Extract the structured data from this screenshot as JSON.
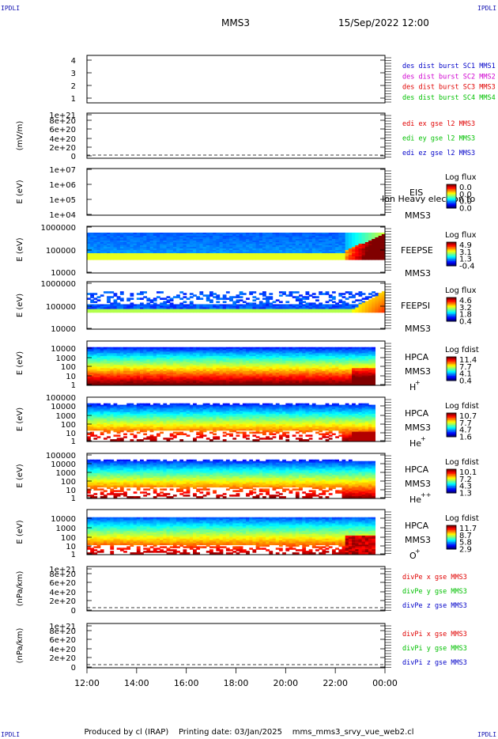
{
  "header": {
    "corner_tl": "IPDLI",
    "corner_tr": "IPDLI",
    "corner_bl": "IPDLI",
    "corner_br": "IPDLI",
    "mission": "MMS3",
    "datetime": "15/Sep/2022 12:00"
  },
  "footer": {
    "produced_by": "Produced by cl (IRAP)",
    "printing_date": "Printing date: 03/Jan/2025",
    "script": "mms_mms3_srvy_vue_web2.cl"
  },
  "colors": {
    "blue": "#0000c8",
    "magenta": "#d000d0",
    "red": "#e00000",
    "green": "#00c000"
  },
  "chart_data": {
    "type": "heatmap",
    "x_ticks": [
      "12:00",
      "14:00",
      "16:00",
      "18:00",
      "20:00",
      "22:00",
      "00:00"
    ],
    "xlim": [
      "12:00",
      "00:00"
    ],
    "panels": [
      {
        "id": "dist-burst",
        "ylabel": "",
        "ytick_labels": [
          "1",
          "2",
          "3",
          "4"
        ],
        "ylim": [
          0.6,
          4.4
        ],
        "legend": [
          {
            "text": "des dist burst SC1 MMS1",
            "color": "#0000c8"
          },
          {
            "text": "des dist burst SC2 MMS2",
            "color": "#d000d0"
          },
          {
            "text": "des dist burst SC3 MMS3",
            "color": "#e00000"
          },
          {
            "text": "des dist burst SC4 MMS4",
            "color": "#00c000"
          }
        ]
      },
      {
        "id": "edi-e",
        "ylabel": "(mV/m)",
        "ytick_labels": [
          "0",
          "2e+20",
          "4e+20",
          "6e+20",
          "8e+20",
          "1e+21"
        ],
        "zero_line": true,
        "legend": [
          {
            "text": "edi ex gse l2 MMS3",
            "color": "#e00000"
          },
          {
            "text": "edi ey gse l2 MMS3",
            "color": "#00c000"
          },
          {
            "text": "edi ez gse l2 MMS3",
            "color": "#0000c8"
          }
        ]
      },
      {
        "id": "eis",
        "ylabel": "E (eV)",
        "ytick_labels": [
          "1e+04",
          "1e+05",
          "1e+06",
          "1e+07"
        ],
        "log_scale": true,
        "ylim": [
          10000,
          10000000
        ],
        "instrument": "EIS",
        "sub_label": "MMS3",
        "overlay_text": "Ion Heavy electron to",
        "colorbar": {
          "title": "Log flux",
          "ticks": [
            "0.0",
            "0.0",
            "0.0",
            "0.0"
          ]
        },
        "spectrogram": "none"
      },
      {
        "id": "feepse",
        "ylabel": "E (eV)",
        "ytick_labels": [
          "10000",
          "100000",
          "1000000"
        ],
        "log_scale": true,
        "instrument": "FEEPSE",
        "sub_label": "MMS3",
        "colorbar": {
          "title": "Log flux",
          "ticks": [
            "4.9",
            "3.1",
            "1.3",
            "-0.4"
          ]
        },
        "spectrogram": "feeps_e"
      },
      {
        "id": "feepsi",
        "ylabel": "E (eV)",
        "ytick_labels": [
          "10000",
          "100000",
          "1000000"
        ],
        "log_scale": true,
        "instrument": "FEEPSI",
        "sub_label": "MMS3",
        "colorbar": {
          "title": "Log flux",
          "ticks": [
            "4.6",
            "3.2",
            "1.8",
            "0.4"
          ]
        },
        "spectrogram": "feeps_i"
      },
      {
        "id": "hpca-h",
        "ylabel": "E (eV)",
        "ytick_labels": [
          "1",
          "10",
          "100",
          "1000",
          "10000"
        ],
        "log_scale": true,
        "instrument": "HPCA",
        "sub_label": "MMS3",
        "species": "H",
        "charge": "+",
        "colorbar": {
          "title": "Log fdist",
          "ticks": [
            "11.4",
            "7.7",
            "4.1",
            "0.4"
          ]
        },
        "spectrogram": "hpca_h"
      },
      {
        "id": "hpca-he",
        "ylabel": "E (eV)",
        "ytick_labels": [
          "1",
          "10",
          "100",
          "1000",
          "10000",
          "100000"
        ],
        "log_scale": true,
        "instrument": "HPCA",
        "sub_label": "MMS3",
        "species": "He",
        "charge": "+",
        "colorbar": {
          "title": "Log fdist",
          "ticks": [
            "10.7",
            "7.7",
            "4.7",
            "1.6"
          ]
        },
        "spectrogram": "hpca_he"
      },
      {
        "id": "hpca-hepp",
        "ylabel": "E (eV)",
        "ytick_labels": [
          "1",
          "10",
          "100",
          "1000",
          "10000",
          "100000"
        ],
        "log_scale": true,
        "instrument": "HPCA",
        "sub_label": "MMS3",
        "species": "He",
        "charge": "++",
        "colorbar": {
          "title": "Log fdist",
          "ticks": [
            "10.1",
            "7.2",
            "4.3",
            "1.3"
          ]
        },
        "spectrogram": "hpca_hepp"
      },
      {
        "id": "hpca-o",
        "ylabel": "E (eV)",
        "ytick_labels": [
          "1",
          "10",
          "100",
          "1000",
          "10000"
        ],
        "log_scale": true,
        "instrument": "HPCA",
        "sub_label": "MMS3",
        "species": "O",
        "charge": "+",
        "colorbar": {
          "title": "Log fdist",
          "ticks": [
            "11.7",
            "8.7",
            "5.8",
            "2.9"
          ]
        },
        "spectrogram": "hpca_o"
      },
      {
        "id": "divpe",
        "ylabel": "(nPa/km)",
        "ytick_labels": [
          "0",
          "2e+20",
          "4e+20",
          "6e+20",
          "8e+20",
          "1e+21"
        ],
        "zero_line": true,
        "legend": [
          {
            "text": "divPe x gse MMS3",
            "color": "#e00000"
          },
          {
            "text": "divPe y gse MMS3",
            "color": "#00c000"
          },
          {
            "text": "divPe z gse MMS3",
            "color": "#0000c8"
          }
        ]
      },
      {
        "id": "divpi",
        "ylabel": "(nPa/km)",
        "ytick_labels": [
          "0",
          "2e+20",
          "4e+20",
          "6e+20",
          "8e+20",
          "1e+21"
        ],
        "zero_line": true,
        "legend": [
          {
            "text": "divPi x gse MMS3",
            "color": "#e00000"
          },
          {
            "text": "divPi y gse MMS3",
            "color": "#00c000"
          },
          {
            "text": "divPi z gse MMS3",
            "color": "#0000c8"
          }
        ]
      }
    ]
  }
}
